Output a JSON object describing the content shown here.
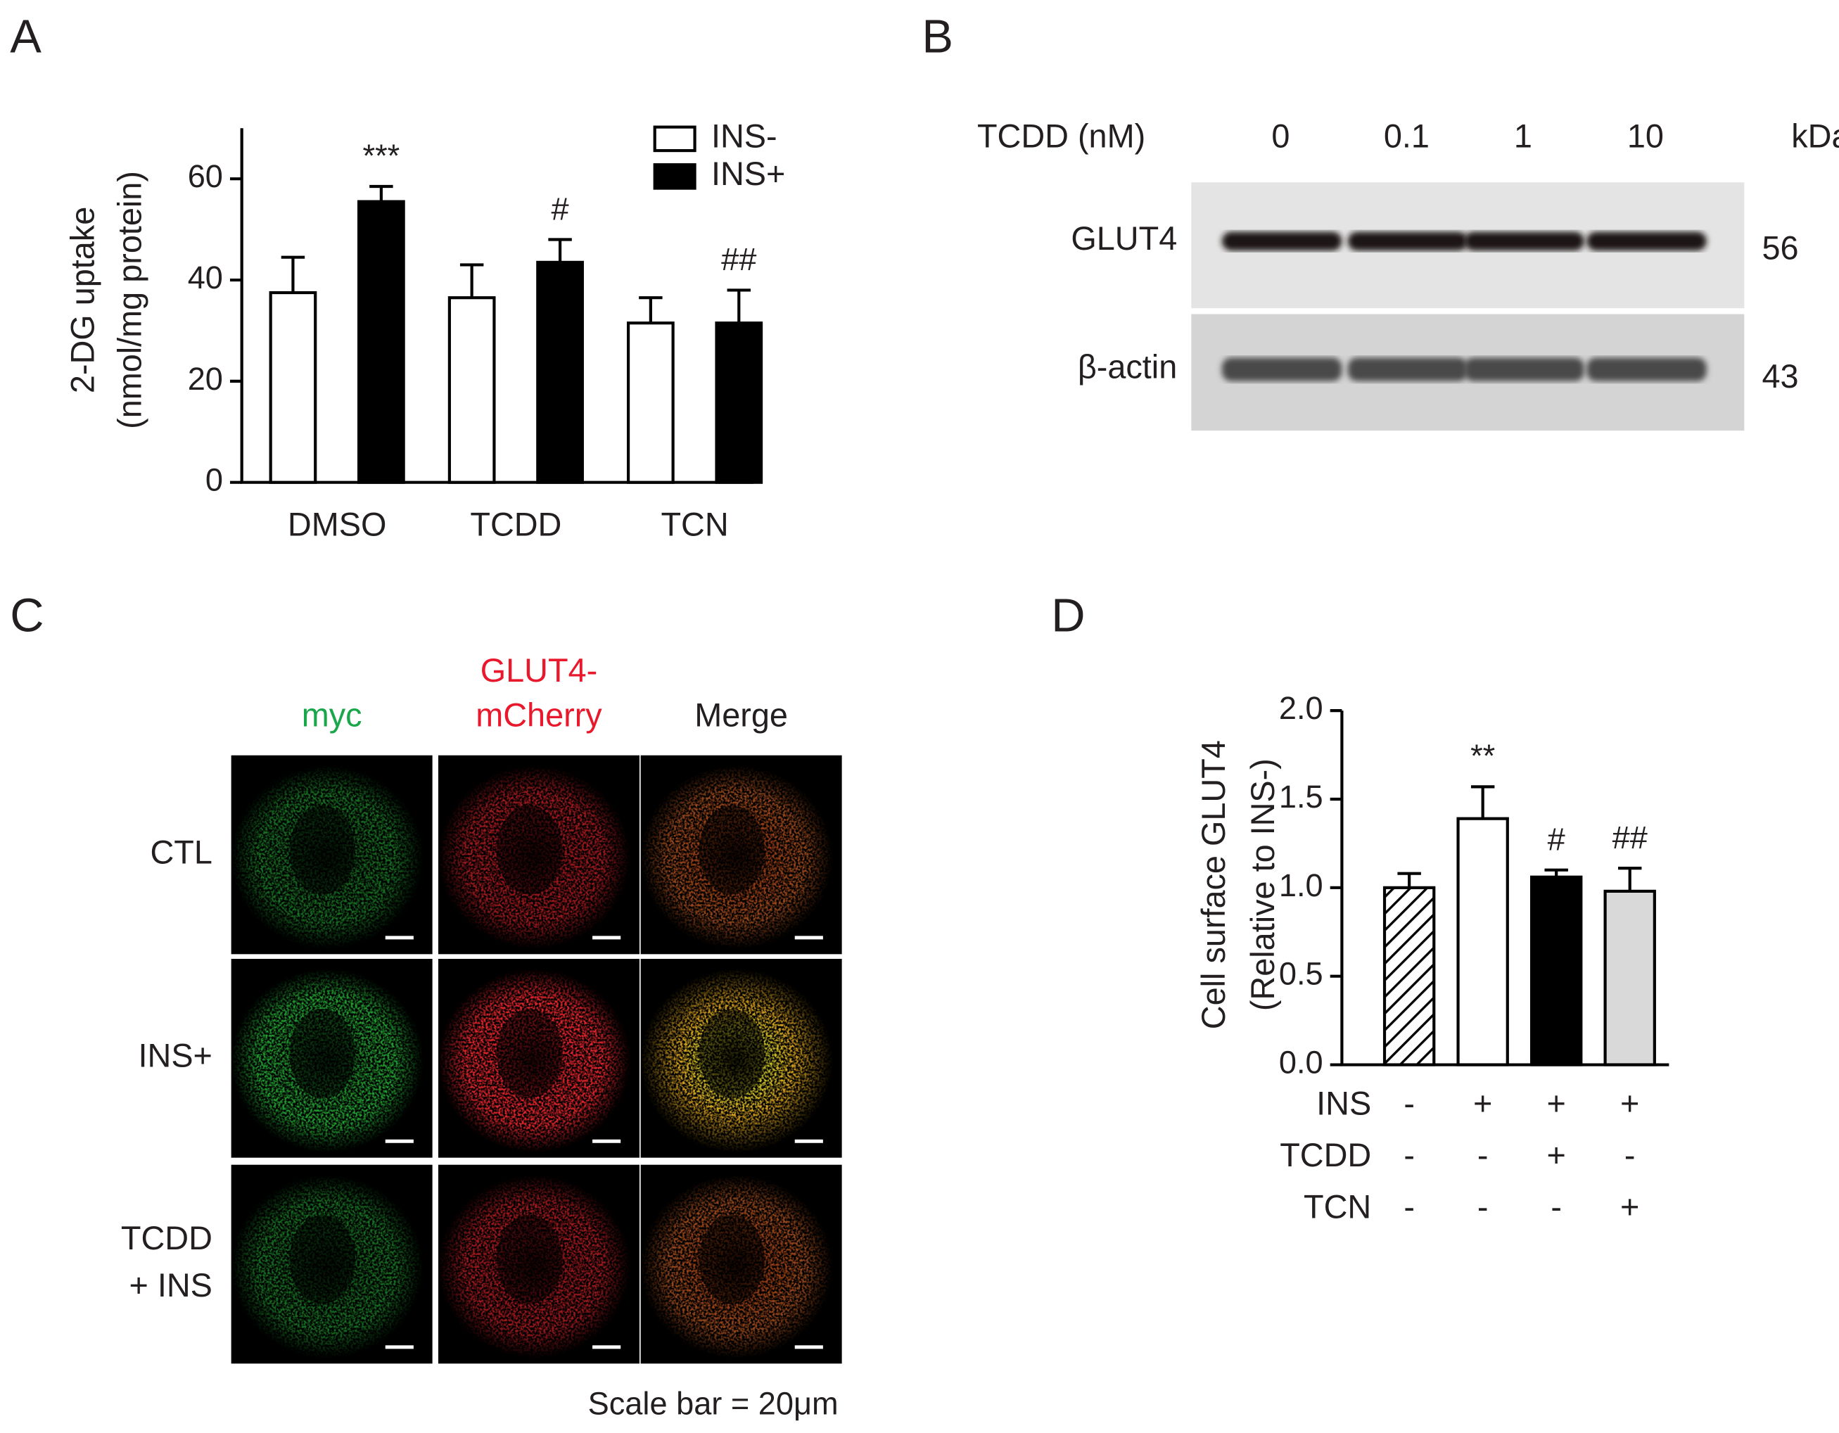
{
  "chart_data": [
    {
      "type": "bar",
      "panel": "A",
      "ylabel": [
        "2-DG uptake",
        "(nmol/mg protein)"
      ],
      "categories": [
        "DMSO",
        "TCDD",
        "TCN"
      ],
      "series": [
        {
          "name": "INS-",
          "color": "#ffffff",
          "values": [
            37.5,
            36.5,
            31.5
          ],
          "errors": [
            7,
            6.5,
            5
          ]
        },
        {
          "name": "INS+",
          "color": "#000000",
          "values": [
            55.5,
            43.5,
            31.5
          ],
          "errors": [
            3,
            4.5,
            6.5
          ],
          "significance": [
            "***",
            "#",
            "##"
          ]
        }
      ],
      "ylim": [
        0,
        70
      ],
      "yticks": [
        0,
        20,
        40,
        60
      ],
      "legend": "upper right"
    },
    {
      "type": "bar",
      "panel": "D",
      "ylabel": [
        "Cell surface GLUT4",
        "(Relative to INS-)"
      ],
      "values": [
        1.0,
        1.39,
        1.06,
        0.98
      ],
      "errors": [
        0.08,
        0.18,
        0.04,
        0.13
      ],
      "fills": [
        "hatched",
        "#ffffff",
        "#000000",
        "#d9d9d9"
      ],
      "significance": [
        null,
        "**",
        "#",
        "##"
      ],
      "ylim": [
        0,
        2.0
      ],
      "yticks": [
        {
          "value": 0,
          "label": "0.0"
        },
        0.5,
        {
          "value": 1,
          "label": "1.0"
        },
        1.5,
        {
          "value": 2,
          "label": "2.0"
        }
      ],
      "conditions": [
        {
          "name": "INS",
          "signs": [
            "-",
            "+",
            "+",
            "+"
          ]
        },
        {
          "name": "TCDD",
          "signs": [
            "-",
            "-",
            "+",
            "-"
          ]
        },
        {
          "name": "TCN",
          "signs": [
            "-",
            "-",
            "-",
            "+"
          ]
        }
      ]
    }
  ],
  "blot": {
    "panel": "B",
    "treatment": "TCDD (nM)",
    "lanes": [
      "0",
      "0.1",
      "1",
      "10"
    ],
    "unit": "kDa",
    "rows": [
      {
        "label": "GLUT4",
        "kda": "56"
      },
      {
        "label": "β-actin",
        "kda": "43"
      }
    ]
  },
  "microscopy": {
    "panel": "C",
    "columns": [
      [
        "myc"
      ],
      [
        "GLUT4-",
        "mCherry"
      ],
      [
        "Merge"
      ]
    ],
    "rows": [
      [
        "CTL"
      ],
      [
        "INS+"
      ],
      [
        "TCDD",
        "+ INS"
      ]
    ],
    "scale_note": "Scale bar = 20μm"
  }
}
